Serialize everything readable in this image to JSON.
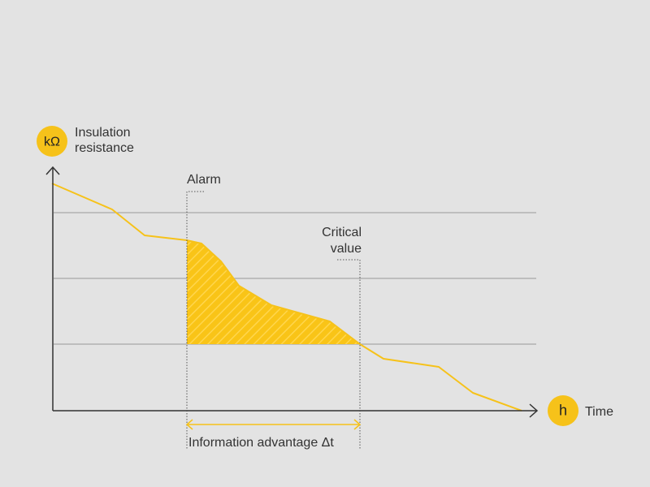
{
  "y_axis": {
    "unit_badge": "kΩ",
    "label_line1": "Insulation",
    "label_line2": "resistance"
  },
  "x_axis": {
    "unit_badge": "h",
    "label": "Time"
  },
  "annotations": {
    "alarm": "Alarm",
    "critical_line1": "Critical",
    "critical_line2": "value",
    "advantage": "Information advantage Δt"
  },
  "colors": {
    "background": "#e3e3e3",
    "curve": "#f6c21a",
    "fill": "#f9c417",
    "badge": "#f6c21a",
    "axis": "#333333",
    "grid": "#9a9a9a",
    "text": "#333333"
  },
  "icons": {
    "y_arrow": "arrow-up-icon",
    "x_arrow": "arrow-right-icon",
    "span_arrow": "double-arrow-icon"
  }
}
